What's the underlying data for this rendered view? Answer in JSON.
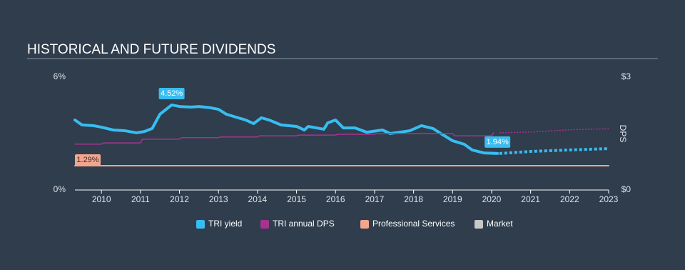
{
  "chart_data": {
    "type": "line",
    "title": "HISTORICAL AND FUTURE DIVIDENDS",
    "y2_label": "DPS",
    "xlim": [
      2009.32,
      2023
    ],
    "xticks": [
      2010,
      2011,
      2012,
      2013,
      2014,
      2015,
      2016,
      2017,
      2018,
      2019,
      2020,
      2021,
      2022,
      2023
    ],
    "ylim": [
      0,
      6
    ],
    "yticks": [
      {
        "value": 0,
        "label": "0%"
      },
      {
        "value": 6,
        "label": "6%"
      }
    ],
    "y2lim": [
      0,
      3
    ],
    "y2ticks": [
      {
        "value": 0,
        "label": "$0"
      },
      {
        "value": 3,
        "label": "$3"
      }
    ],
    "series": [
      {
        "name": "TRI yield",
        "color": "#38bdf0",
        "x": [
          2009.32,
          2009.5,
          2009.8,
          2010.0,
          2010.3,
          2010.6,
          2010.9,
          2011.1,
          2011.3,
          2011.5,
          2011.8,
          2012.0,
          2012.3,
          2012.5,
          2012.8,
          2013.0,
          2013.2,
          2013.5,
          2013.7,
          2013.9,
          2014.1,
          2014.3,
          2014.6,
          2015.0,
          2015.2,
          2015.3,
          2015.7,
          2015.8,
          2016.0,
          2016.2,
          2016.5,
          2016.8,
          2017.2,
          2017.4,
          2017.9,
          2018.2,
          2018.5,
          2018.7,
          2019.0,
          2019.3,
          2019.5,
          2019.8,
          2020.15
        ],
        "values": [
          3.72,
          3.46,
          3.42,
          3.34,
          3.19,
          3.15,
          3.04,
          3.11,
          3.27,
          4.03,
          4.52,
          4.44,
          4.41,
          4.44,
          4.37,
          4.29,
          4.03,
          3.84,
          3.72,
          3.53,
          3.84,
          3.72,
          3.46,
          3.38,
          3.19,
          3.38,
          3.23,
          3.57,
          3.72,
          3.3,
          3.3,
          3.07,
          3.19,
          3.0,
          3.15,
          3.42,
          3.27,
          3.0,
          2.62,
          2.43,
          2.13,
          1.97,
          1.94
        ],
        "forecast_x": [
          2020.2,
          2021,
          2022,
          2023
        ],
        "forecast_values": [
          1.94,
          2.05,
          2.13,
          2.2
        ]
      },
      {
        "name": "TRI annual DPS",
        "color": "#a8338f",
        "axis": "y2",
        "x": [
          2009.32,
          2010.0,
          2010.05,
          2011.0,
          2011.05,
          2012.0,
          2012.05,
          2013.0,
          2013.05,
          2014.0,
          2014.05,
          2015.0,
          2015.05,
          2016.0,
          2016.05,
          2017.0,
          2017.05,
          2018.0,
          2018.05,
          2019.0,
          2019.05,
          2020.0,
          2020.05
        ],
        "values": [
          1.22,
          1.22,
          1.25,
          1.25,
          1.35,
          1.35,
          1.39,
          1.39,
          1.41,
          1.41,
          1.44,
          1.44,
          1.46,
          1.46,
          1.48,
          1.48,
          1.5,
          1.5,
          1.5,
          1.5,
          1.44,
          1.44,
          1.52
        ],
        "forecast_x": [
          2020.2,
          2021,
          2022,
          2023
        ],
        "forecast_values": [
          1.52,
          1.54,
          1.6,
          1.63
        ]
      },
      {
        "name": "Professional Services",
        "color": "#f4a58e",
        "x": [
          2009.32,
          2023
        ],
        "values": [
          1.29,
          1.29
        ]
      },
      {
        "name": "Market",
        "color": "#c8c8c8",
        "x": [],
        "values": []
      }
    ],
    "annotations": [
      {
        "text": "4.52%",
        "x": 2011.8,
        "y": 4.52,
        "color": "#38bdf0"
      },
      {
        "text": "1.94%",
        "x": 2020.15,
        "y": 1.94,
        "color": "#38bdf0"
      },
      {
        "text": "1.29%",
        "x": 2009.32,
        "y": 1.29,
        "color": "#f4a58e"
      }
    ]
  }
}
